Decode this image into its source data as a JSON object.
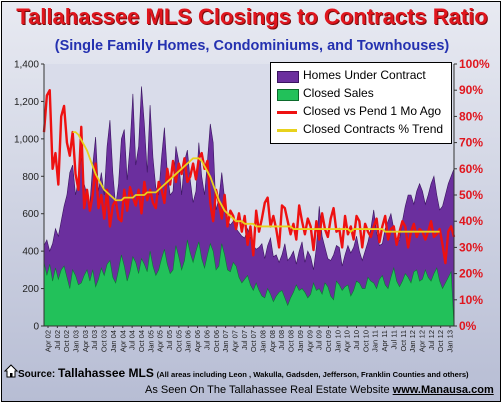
{
  "title": "Tallahassee MLS Closings to Contracts Ratio",
  "subtitle": "(Single Family Homes, Condominiums, and Townhouses)",
  "footer": {
    "source_label": "Source:",
    "source_name": "Tallahassee MLS",
    "source_note": "(All areas including Leon , Wakulla, Gadsden, Jefferson, Franklin Counties and others)",
    "site_prefix": "As Seen On The Tallahassee Real Estate Website",
    "site_url": "www.Manausa.com"
  },
  "logo_icon": "house-icon",
  "colors": {
    "contracts": "#6b2f9e",
    "sales": "#22c15a",
    "ratio": "#ee1111",
    "trend": "#e8d21c",
    "title": "#e0161e",
    "subtitle": "#2431b0"
  },
  "chart_data": {
    "type": "area",
    "title": "Tallahassee MLS Closings to Contracts Ratio",
    "subtitle": "(Single Family Homes, Condominiums, and Townhouses)",
    "x_tick_labels": [
      "Apr 02",
      "Jul 02",
      "Oct 02",
      "Jan 03",
      "Apr 03",
      "Jul 03",
      "Oct 03",
      "Jan 04",
      "Apr 04",
      "Jul 04",
      "Oct 04",
      "Jan 05",
      "Apr 05",
      "Jul 05",
      "Oct 05",
      "Jan 06",
      "Apr 06",
      "Jul 06",
      "Oct 06",
      "Jan 07",
      "Apr 07",
      "Jul 07",
      "Oct 07",
      "Jan 08",
      "Apr 08",
      "Jul 08",
      "Oct 08",
      "Jan 09",
      "Apr 09",
      "Jul 09",
      "Oct 09",
      "Jan 10",
      "Apr 10",
      "Jul 10",
      "Oct 10",
      "Jan 11",
      "Apr 11",
      "Jul 11",
      "Oct 11",
      "Jan 12",
      "Apr 12",
      "Jul 12",
      "Oct 12",
      "Jan 13"
    ],
    "y_left": {
      "min": 0,
      "max": 1400,
      "ticks": [
        0,
        200,
        400,
        600,
        800,
        "1,000",
        "1,200",
        "1,400"
      ]
    },
    "y_right": {
      "min": 0,
      "max": 100,
      "ticks": [
        "0%",
        "10%",
        "20%",
        "30%",
        "40%",
        "50%",
        "60%",
        "70%",
        "80%",
        "90%",
        "100%"
      ]
    },
    "legend_position": "top-right",
    "grid": false,
    "series": [
      {
        "name": "Homes Under Contract",
        "kind": "area",
        "axis": "left",
        "values": [
          430,
          460,
          400,
          440,
          520,
          480,
          560,
          640,
          700,
          820,
          860,
          700,
          780,
          900,
          760,
          700,
          650,
          860,
          1010,
          720,
          820,
          700,
          960,
          1100,
          820,
          640,
          760,
          1000,
          1050,
          780,
          960,
          1240,
          860,
          960,
          1280,
          1080,
          820,
          1180,
          900,
          740,
          700,
          900,
          1060,
          820,
          700,
          720,
          960,
          880,
          700,
          880,
          940,
          780,
          660,
          720,
          980,
          800,
          700,
          880,
          1080,
          980,
          620,
          680,
          820,
          680,
          560,
          540,
          560,
          520,
          500,
          480,
          470,
          520,
          470,
          430,
          410,
          420,
          440,
          360,
          430,
          470,
          370,
          380,
          340,
          380,
          440,
          350,
          370,
          400,
          330,
          400,
          450,
          340,
          400,
          370,
          300,
          420,
          640,
          480,
          420,
          360,
          350,
          380,
          430,
          420,
          320,
          380,
          430,
          390,
          420,
          480,
          400,
          350,
          400,
          450,
          520,
          620,
          500,
          430,
          440,
          520,
          560,
          600,
          520,
          440,
          460,
          560,
          640,
          700,
          700,
          650,
          720,
          760,
          720,
          650,
          700,
          760,
          800,
          700,
          620,
          640,
          700,
          760,
          800,
          840
        ]
      },
      {
        "name": "Closed Sales",
        "kind": "area",
        "axis": "left",
        "values": [
          340,
          270,
          330,
          240,
          310,
          250,
          300,
          320,
          260,
          200,
          300,
          270,
          220,
          230,
          270,
          300,
          240,
          300,
          210,
          250,
          310,
          270,
          330,
          350,
          260,
          230,
          300,
          380,
          320,
          240,
          290,
          370,
          340,
          280,
          360,
          330,
          290,
          400,
          320,
          270,
          300,
          360,
          410,
          330,
          280,
          300,
          430,
          370,
          300,
          350,
          460,
          390,
          340,
          400,
          450,
          360,
          310,
          380,
          440,
          400,
          300,
          320,
          440,
          380,
          300,
          290,
          340,
          320,
          260,
          230,
          250,
          270,
          220,
          190,
          230,
          190,
          160,
          150,
          200,
          170,
          130,
          160,
          180,
          190,
          150,
          110,
          150,
          180,
          220,
          190,
          200,
          180,
          150,
          170,
          230,
          190,
          200,
          170,
          230,
          210,
          160,
          140,
          240,
          220,
          190,
          210,
          220,
          160,
          190,
          240,
          230,
          200,
          200,
          260,
          240,
          230,
          200,
          250,
          270,
          220,
          200,
          260,
          310,
          240,
          210,
          240,
          280,
          260,
          230,
          290,
          300,
          240,
          250,
          300,
          260,
          240,
          280,
          310,
          240,
          200,
          230,
          260,
          290
        ]
      },
      {
        "name": "Closed vs Pend 1 Mo Ago",
        "kind": "line",
        "axis": "right",
        "values": [
          0.74,
          0.88,
          0.9,
          0.6,
          0.66,
          0.54,
          0.8,
          0.84,
          0.7,
          0.65,
          0.74,
          0.58,
          0.52,
          0.76,
          0.45,
          0.52,
          0.44,
          0.5,
          0.62,
          0.45,
          0.5,
          0.41,
          0.52,
          0.38,
          0.46,
          0.48,
          0.41,
          0.4,
          0.52,
          0.44,
          0.53,
          0.49,
          0.46,
          0.52,
          0.43,
          0.55,
          0.48,
          0.52,
          0.47,
          0.45,
          0.55,
          0.52,
          0.47,
          0.6,
          0.54,
          0.63,
          0.55,
          0.62,
          0.58,
          0.64,
          0.55,
          0.57,
          0.62,
          0.56,
          0.64,
          0.66,
          0.6,
          0.63,
          0.47,
          0.4,
          0.52,
          0.47,
          0.41,
          0.5,
          0.38,
          0.44,
          0.42,
          0.37,
          0.43,
          0.36,
          0.42,
          0.31,
          0.38,
          0.27,
          0.44,
          0.36,
          0.41,
          0.47,
          0.49,
          0.38,
          0.42,
          0.37,
          0.3,
          0.46,
          0.45,
          0.4,
          0.35,
          0.39,
          0.33,
          0.46,
          0.4,
          0.35,
          0.41,
          0.38,
          0.29,
          0.4,
          0.33,
          0.43,
          0.37,
          0.34,
          0.41,
          0.45,
          0.36,
          0.37,
          0.3,
          0.42,
          0.35,
          0.38,
          0.33,
          0.42,
          0.4,
          0.3,
          0.39,
          0.36,
          0.34,
          0.38,
          0.41,
          0.32,
          0.38,
          0.42,
          0.33,
          0.37,
          0.38,
          0.31,
          0.36,
          0.4,
          0.38,
          0.3,
          0.36,
          0.39,
          0.34,
          0.37,
          0.36,
          0.33,
          0.36,
          0.4,
          0.34,
          0.35,
          0.37,
          0.31,
          0.24,
          0.36,
          0.38,
          0.34
        ]
      },
      {
        "name": "Closed Contracts % Trend",
        "kind": "line",
        "axis": "right",
        "start_index": 10,
        "values": [
          0.74,
          0.74,
          0.73,
          0.71,
          0.69,
          0.67,
          0.64,
          0.61,
          0.58,
          0.56,
          0.54,
          0.52,
          0.51,
          0.5,
          0.49,
          0.48,
          0.48,
          0.48,
          0.49,
          0.49,
          0.49,
          0.49,
          0.5,
          0.5,
          0.5,
          0.5,
          0.51,
          0.51,
          0.51,
          0.51,
          0.52,
          0.53,
          0.54,
          0.55,
          0.56,
          0.57,
          0.58,
          0.59,
          0.6,
          0.61,
          0.62,
          0.63,
          0.64,
          0.64,
          0.64,
          0.63,
          0.61,
          0.59,
          0.57,
          0.54,
          0.51,
          0.48,
          0.46,
          0.44,
          0.43,
          0.42,
          0.41,
          0.4,
          0.4,
          0.4,
          0.39,
          0.39,
          0.39,
          0.39,
          0.38,
          0.38,
          0.38,
          0.38,
          0.38,
          0.38,
          0.38,
          0.38,
          0.38,
          0.38,
          0.38,
          0.38,
          0.38,
          0.37,
          0.37,
          0.37,
          0.37,
          0.37,
          0.37,
          0.37,
          0.37,
          0.37,
          0.37,
          0.37,
          0.37,
          0.37,
          0.37,
          0.37,
          0.37,
          0.37,
          0.37,
          0.37,
          0.37,
          0.36,
          0.37,
          0.37,
          0.37,
          0.37,
          0.37,
          0.37,
          0.37,
          0.37,
          0.37,
          0.37,
          0.37,
          0.36,
          0.36,
          0.36,
          0.36,
          0.36,
          0.36,
          0.36,
          0.36,
          0.36,
          0.36,
          0.36,
          0.36,
          0.36,
          0.36,
          0.36,
          0.36,
          0.36,
          0.36,
          0.36,
          0.36
        ]
      }
    ]
  }
}
